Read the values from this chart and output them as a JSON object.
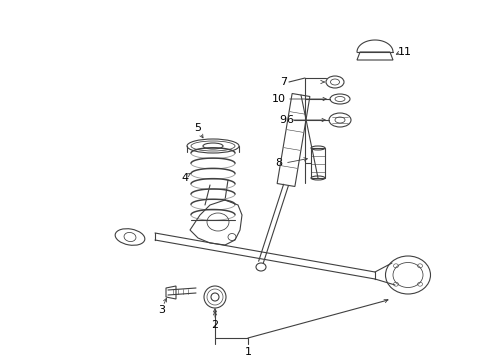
{
  "background_color": "#ffffff",
  "line_color": "#404040",
  "label_color": "#000000",
  "fig_w": 4.89,
  "fig_h": 3.6,
  "dpi": 100
}
